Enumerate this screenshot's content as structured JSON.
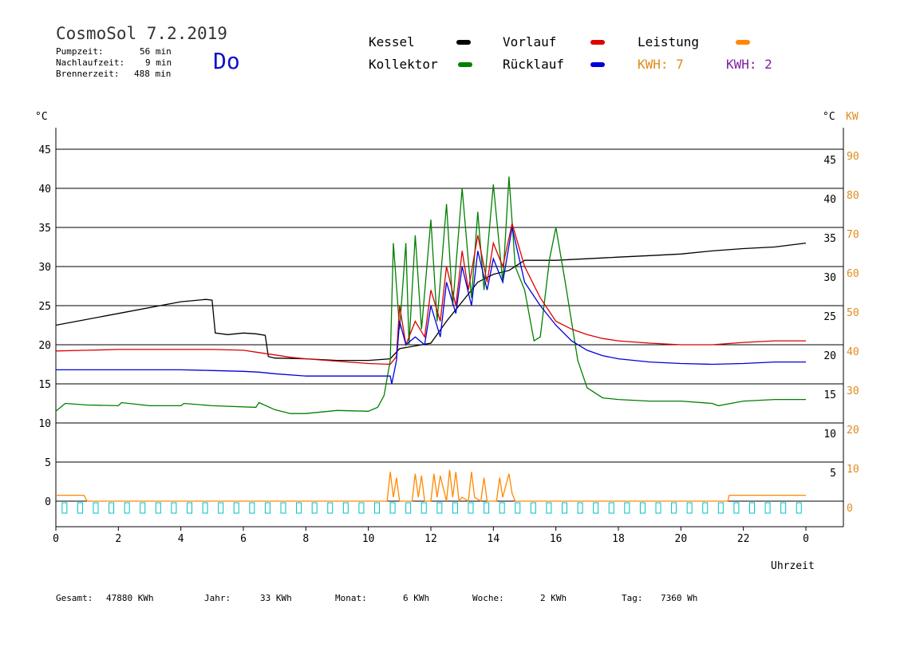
{
  "header": {
    "app_title": "CosmoSol 7.2.2019",
    "pump_label": "Pumpzeit:",
    "pump_value": "56 min",
    "nachlauf_label": "Nachlaufzeit:",
    "nachlauf_value": "9 min",
    "brenner_label": "Brennerzeit:",
    "brenner_value": "488 min",
    "weekday": "Do"
  },
  "legend": {
    "kessel": {
      "label": "Kessel",
      "color": "#000000"
    },
    "kollektor": {
      "label": "Kollektor",
      "color": "#008000"
    },
    "vorlauf": {
      "label": "Vorlauf",
      "color": "#dd0000"
    },
    "ruecklauf": {
      "label": "Rücklauf",
      "color": "#0000dd"
    },
    "leistung": {
      "label": "Leistung",
      "color": "#ff8800"
    },
    "kwh1": {
      "label": "KWH: 7",
      "color": "#e08a1a"
    },
    "kwh2": {
      "label": "KWH: 2",
      "color": "#8020a0"
    }
  },
  "axes": {
    "left_unit": "°C",
    "right_unit": "°C",
    "right_unit2": "KW",
    "xlabel": "Uhrzeit",
    "x_ticks": [
      "0",
      "2",
      "4",
      "6",
      "8",
      "10",
      "12",
      "14",
      "16",
      "18",
      "20",
      "22",
      "0"
    ],
    "y_left_ticks": [
      "0",
      "5",
      "10",
      "15",
      "20",
      "25",
      "30",
      "35",
      "40",
      "45"
    ],
    "y_right_ticks": [
      "5",
      "10",
      "15",
      "20",
      "25",
      "30",
      "35",
      "40",
      "45"
    ],
    "y_kw_ticks": [
      "0",
      "10",
      "20",
      "30",
      "40",
      "50",
      "60",
      "70",
      "80",
      "90"
    ]
  },
  "footer": {
    "gesamt_label": "Gesamt:",
    "gesamt_value": "47880 KWh",
    "jahr_label": "Jahr:",
    "jahr_value": "33 KWh",
    "monat_label": "Monat:",
    "monat_value": "6 KWh",
    "woche_label": "Woche:",
    "woche_value": "2 KWh",
    "tag_label": "Tag:",
    "tag_value": "7360 Wh"
  },
  "chart_data": {
    "type": "line",
    "title": "CosmoSol 7.2.2019",
    "xlabel": "Uhrzeit",
    "ylabel": "°C",
    "ylabel_right": "KW",
    "xlim": [
      0,
      24
    ],
    "ylim": [
      0,
      45
    ],
    "ylim_right_kw": [
      0,
      90
    ],
    "grid": "horizontal",
    "series": [
      {
        "name": "Kessel",
        "color": "#000000",
        "x": [
          0,
          2,
          4,
          4.8,
          5,
          5.1,
          5.5,
          6,
          6.4,
          6.7,
          6.8,
          7,
          8,
          9,
          10,
          10.7,
          11,
          12,
          12.5,
          13,
          13.5,
          14,
          14.5,
          15,
          16,
          17,
          18,
          19,
          20,
          21,
          22,
          23,
          24
        ],
        "y": [
          22.5,
          24,
          25.5,
          25.8,
          25.7,
          21.5,
          21.3,
          21.5,
          21.4,
          21.2,
          18.5,
          18.3,
          18.2,
          18,
          18,
          18.2,
          19.5,
          20.2,
          23,
          25.5,
          28,
          29,
          29.5,
          30.8,
          30.8,
          31,
          31.2,
          31.4,
          31.6,
          32,
          32.3,
          32.5,
          33
        ]
      },
      {
        "name": "Kollektor",
        "color": "#008000",
        "x": [
          0,
          0.3,
          1,
          2,
          2.1,
          3,
          4,
          4.1,
          5,
          6.4,
          6.5,
          7,
          7.5,
          8,
          9,
          10,
          10.3,
          10.5,
          10.7,
          10.8,
          11,
          11.2,
          11.3,
          11.5,
          11.7,
          12,
          12.2,
          12.5,
          12.7,
          13,
          13.3,
          13.5,
          13.7,
          14,
          14.3,
          14.5,
          14.7,
          15,
          15.3,
          15.5,
          15.8,
          16,
          16.3,
          16.7,
          17,
          17.5,
          18,
          19,
          20,
          21,
          21.2,
          22,
          23,
          24
        ],
        "y": [
          11.5,
          12.5,
          12.3,
          12.2,
          12.6,
          12.2,
          12.2,
          12.5,
          12.2,
          12,
          12.6,
          11.7,
          11.2,
          11.2,
          11.6,
          11.5,
          12,
          13.5,
          18,
          33,
          22,
          33,
          20,
          34,
          22,
          36,
          23,
          38,
          25,
          40,
          26,
          37,
          27,
          40.5,
          28,
          41.5,
          30,
          27,
          20.5,
          21,
          31,
          35,
          28,
          18,
          14.5,
          13.2,
          13,
          12.8,
          12.8,
          12.5,
          12.2,
          12.8,
          13,
          13
        ]
      },
      {
        "name": "Vorlauf",
        "color": "#dd0000",
        "x": [
          0,
          1,
          2,
          3,
          4,
          5,
          6,
          6.5,
          7,
          7.5,
          8,
          9,
          10,
          10.7,
          10.9,
          11,
          11.2,
          11.5,
          11.8,
          12,
          12.3,
          12.5,
          12.8,
          13,
          13.2,
          13.5,
          13.8,
          14,
          14.3,
          14.6,
          15,
          15.5,
          16,
          16.5,
          17,
          17.5,
          18,
          19,
          20,
          21,
          22,
          23,
          24
        ],
        "y": [
          19.2,
          19.3,
          19.4,
          19.4,
          19.4,
          19.4,
          19.3,
          19,
          18.7,
          18.4,
          18.2,
          17.9,
          17.6,
          17.5,
          18.5,
          25,
          20,
          23,
          21,
          27,
          23,
          30,
          25,
          32,
          27,
          34,
          28,
          33,
          30,
          35.5,
          30,
          26,
          23,
          22,
          21.3,
          20.8,
          20.5,
          20.2,
          20,
          20,
          20.3,
          20.5,
          20.5
        ]
      },
      {
        "name": "Rücklauf",
        "color": "#0000dd",
        "x": [
          0,
          1,
          2,
          3,
          4,
          5,
          6,
          6.5,
          7,
          8,
          9,
          10,
          10.7,
          10.75,
          10.9,
          11,
          11.2,
          11.5,
          11.8,
          12,
          12.3,
          12.5,
          12.8,
          13,
          13.3,
          13.5,
          13.8,
          14,
          14.3,
          14.6,
          15,
          15.5,
          16,
          16.5,
          17,
          17.5,
          18,
          19,
          20,
          21,
          22,
          23,
          24
        ],
        "y": [
          16.8,
          16.8,
          16.8,
          16.8,
          16.8,
          16.7,
          16.6,
          16.5,
          16.3,
          16,
          16,
          16,
          16,
          15,
          18,
          23,
          20,
          21,
          20,
          25,
          21,
          28,
          24,
          30,
          25,
          32,
          27,
          31,
          28,
          35,
          28,
          25,
          22.5,
          20.5,
          19.3,
          18.6,
          18.2,
          17.8,
          17.6,
          17.5,
          17.6,
          17.8,
          17.8
        ]
      },
      {
        "name": "Leistung",
        "color": "#ff8800",
        "axis": "right_kw",
        "x": [
          0,
          0.9,
          1,
          10.6,
          10.7,
          10.8,
          10.9,
          11,
          11.4,
          11.5,
          11.6,
          11.7,
          11.8,
          12,
          12.1,
          12.2,
          12.3,
          12.5,
          12.6,
          12.7,
          12.8,
          12.9,
          13.0,
          13.2,
          13.3,
          13.4,
          13.6,
          13.7,
          13.8,
          14.1,
          14.2,
          14.3,
          14.5,
          14.6,
          14.7,
          14.8,
          21.5,
          21.55,
          24
        ],
        "y": [
          1.5,
          1.5,
          0,
          0,
          7.5,
          1,
          6,
          0,
          0,
          7,
          1,
          6.5,
          0,
          0,
          7,
          1,
          6.5,
          0,
          8,
          1,
          7.5,
          0,
          1,
          0,
          7.5,
          1,
          0,
          6,
          0,
          0,
          6,
          1,
          7,
          2,
          0,
          0,
          0,
          1.5,
          1.5
        ]
      }
    ]
  }
}
